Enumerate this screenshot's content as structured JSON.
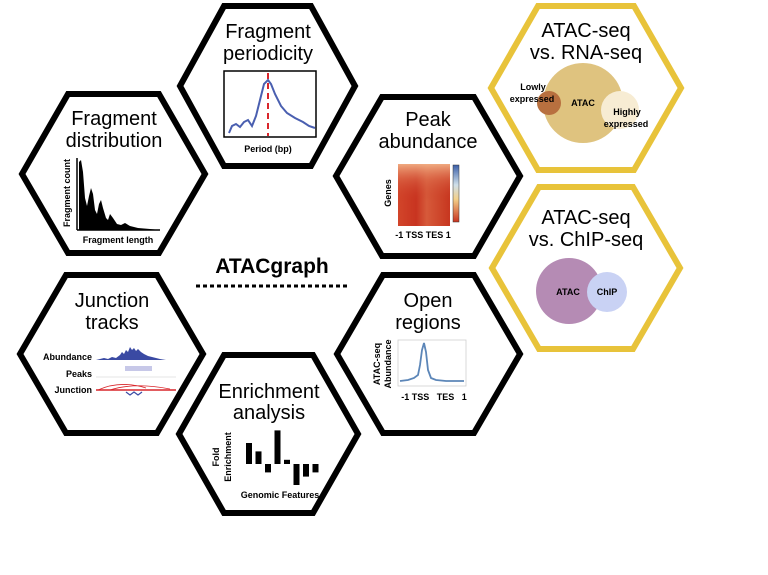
{
  "center_title": "ATACgraph",
  "colors": {
    "hex_black": "#000000",
    "hex_gold": "#e8c33a",
    "line_blue": "#4a5fb0",
    "dash_red": "#d9262b",
    "atac_tan": "#dfc37f",
    "lowly_brown": "#b8703f",
    "highly_cream": "#f7ecd3",
    "atac_purple": "#b58bb4",
    "chip_lavender": "#c9d2f4",
    "heat_red": "#c83420",
    "heat_yellow": "#f3d08a",
    "curve_steel": "#5c86b8"
  },
  "hexagons": {
    "fragment_distribution": {
      "title_lines": [
        "Fragment",
        "distribution"
      ],
      "ylabel": "Fragment count",
      "xlabel": "Fragment length"
    },
    "fragment_periodicity": {
      "title_lines": [
        "Fragment",
        "periodicity"
      ],
      "xlabel": "Period (bp)"
    },
    "peak_abundance": {
      "title_lines": [
        "Peak",
        "abundance"
      ],
      "ylabel": "Genes",
      "xlabel": "-1 TSS TES 1"
    },
    "junction_tracks": {
      "title_lines": [
        "Junction",
        "tracks"
      ],
      "track_labels": [
        "Abundance",
        "Peaks",
        "Junction"
      ]
    },
    "open_regions": {
      "title_lines": [
        "Open",
        "regions"
      ],
      "ylabel_lines": [
        "ATAC-seq",
        "Abundance"
      ],
      "xlabel": "-1 TSS   TES   1"
    },
    "enrichment_analysis": {
      "title_lines": [
        "Enrichment",
        "analysis"
      ],
      "ylabel_lines": [
        "Fold",
        "Enrichment"
      ],
      "xlabel": "Genomic Features"
    },
    "atac_vs_rna": {
      "title_lines": [
        "ATAC-seq",
        "vs. RNA-seq"
      ],
      "venn_labels": {
        "lowly": [
          "Lowly",
          "expressed"
        ],
        "atac": "ATAC",
        "highly": [
          "Highly",
          "expressed"
        ]
      }
    },
    "atac_vs_chip": {
      "title_lines": [
        "ATAC-seq",
        "vs. ChIP-seq"
      ],
      "venn_labels": {
        "atac": "ATAC",
        "chip": "ChIP"
      }
    }
  },
  "enrichment_bars": [
    5,
    3,
    -2,
    8,
    1,
    -5,
    -3,
    -2
  ]
}
